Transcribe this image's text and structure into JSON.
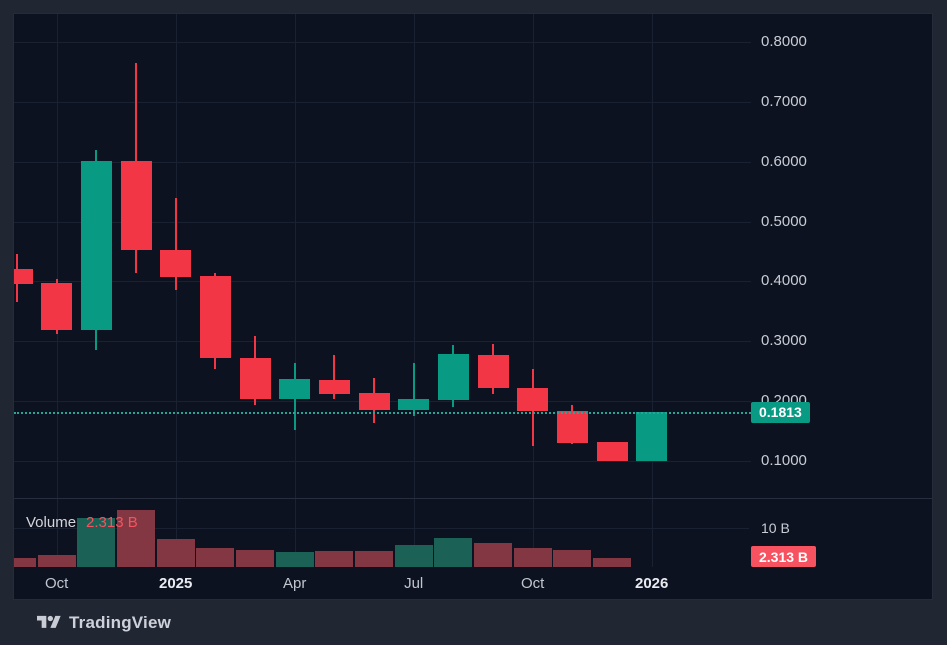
{
  "app": {
    "footer_brand": "TradingView"
  },
  "legend": {
    "indicator_label": "Volume",
    "indicator_value": "2.313 B"
  },
  "price_axis": {
    "ticks": [
      {
        "label": "0.8000",
        "value": 0.8
      },
      {
        "label": "0.7000",
        "value": 0.7
      },
      {
        "label": "0.6000",
        "value": 0.6
      },
      {
        "label": "0.5000",
        "value": 0.5
      },
      {
        "label": "0.4000",
        "value": 0.4
      },
      {
        "label": "0.3000",
        "value": 0.3
      },
      {
        "label": "0.2000",
        "value": 0.2
      },
      {
        "label": "0.1000",
        "value": 0.1
      }
    ],
    "last_price_label": "0.1813",
    "last_price": 0.1813
  },
  "volume_axis": {
    "tick_label": "10 B",
    "tick_value": 10,
    "last_volume_label": "2.313 B",
    "last_volume": 2.313
  },
  "time_axis": {
    "ticks": [
      {
        "label": "Oct",
        "candle_index": 1,
        "bold": false
      },
      {
        "label": "2025",
        "candle_index": 4,
        "bold": true
      },
      {
        "label": "Apr",
        "candle_index": 7,
        "bold": false
      },
      {
        "label": "Jul",
        "candle_index": 10,
        "bold": false
      },
      {
        "label": "Oct",
        "candle_index": 13,
        "bold": false
      },
      {
        "label": "2026",
        "candle_index": 16,
        "bold": true
      }
    ]
  },
  "colors": {
    "up": "#099a84",
    "down": "#f23645",
    "volume_up": "#1b6156",
    "volume_down": "#833742",
    "price_badge_bg": "#099a84",
    "volume_badge_bg": "#f7525f",
    "last_price_line": "#27a599"
  },
  "chart_data": {
    "type": "candlestick+volume",
    "title": "",
    "timeframe": "monthly",
    "ylabel_right_price_range": [
      0.038,
      0.85
    ],
    "volume_unit": "B",
    "grid": true,
    "candles": [
      {
        "t": "Sep 2024",
        "o": 0.421,
        "h": 0.446,
        "l": 0.366,
        "c": 0.396,
        "volume": 2.3
      },
      {
        "t": "Oct 2024",
        "o": 0.397,
        "h": 0.404,
        "l": 0.312,
        "c": 0.319,
        "volume": 3.1
      },
      {
        "t": "Nov 2024",
        "o": 0.319,
        "h": 0.62,
        "l": 0.285,
        "c": 0.601,
        "volume": 12.6
      },
      {
        "t": "Dec 2024",
        "o": 0.601,
        "h": 0.765,
        "l": 0.414,
        "c": 0.452,
        "volume": 14.6
      },
      {
        "t": "Jan 2025",
        "o": 0.452,
        "h": 0.539,
        "l": 0.386,
        "c": 0.407,
        "volume": 7.2
      },
      {
        "t": "Feb 2025",
        "o": 0.409,
        "h": 0.414,
        "l": 0.254,
        "c": 0.272,
        "volume": 4.9
      },
      {
        "t": "Mar 2025",
        "o": 0.272,
        "h": 0.309,
        "l": 0.194,
        "c": 0.204,
        "volume": 4.4
      },
      {
        "t": "Apr 2025",
        "o": 0.204,
        "h": 0.264,
        "l": 0.152,
        "c": 0.237,
        "volume": 3.8
      },
      {
        "t": "May 2025",
        "o": 0.235,
        "h": 0.277,
        "l": 0.204,
        "c": 0.212,
        "volume": 4.1
      },
      {
        "t": "Jun 2025",
        "o": 0.214,
        "h": 0.239,
        "l": 0.164,
        "c": 0.185,
        "volume": 4.1
      },
      {
        "t": "Jul 2025",
        "o": 0.185,
        "h": 0.264,
        "l": 0.175,
        "c": 0.204,
        "volume": 5.6
      },
      {
        "t": "Aug 2025",
        "o": 0.202,
        "h": 0.294,
        "l": 0.19,
        "c": 0.279,
        "volume": 7.4
      },
      {
        "t": "Sep 2025",
        "o": 0.277,
        "h": 0.295,
        "l": 0.212,
        "c": 0.222,
        "volume": 6.2
      },
      {
        "t": "Oct 2025",
        "o": 0.222,
        "h": 0.254,
        "l": 0.125,
        "c": 0.183,
        "volume": 4.9
      },
      {
        "t": "Nov 2025",
        "o": 0.183,
        "h": 0.194,
        "l": 0.128,
        "c": 0.13,
        "volume": 4.4
      },
      {
        "t": "Dec 2025",
        "o": 0.132,
        "h": 0.132,
        "l": 0.1,
        "c": 0.1,
        "volume": 2.313
      },
      {
        "t": "Jan 2026",
        "o": 0.1,
        "h": 0.1813,
        "l": 0.1,
        "c": 0.1813,
        "volume": null
      }
    ]
  }
}
